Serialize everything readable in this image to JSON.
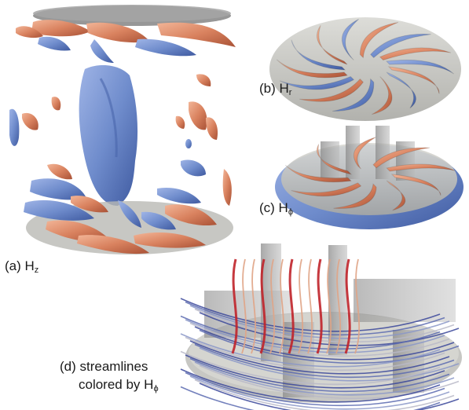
{
  "panels": [
    {
      "id": "a",
      "label": "(a) H",
      "subscript": "z"
    },
    {
      "id": "b",
      "label": "(b) H",
      "subscript": "r"
    },
    {
      "id": "c",
      "label": "(c) H",
      "subscript": "ϕ"
    },
    {
      "id": "d",
      "label_line1": "(d) streamlines",
      "label_line2": "colored by H",
      "subscript": "ϕ"
    }
  ],
  "colors": {
    "blue_iso": "#6f8ccc",
    "orange_iso": "#d9825f",
    "lid_gray": "#9c9c9c",
    "stream_red": "#c0242a",
    "stream_blue": "#39479a"
  }
}
